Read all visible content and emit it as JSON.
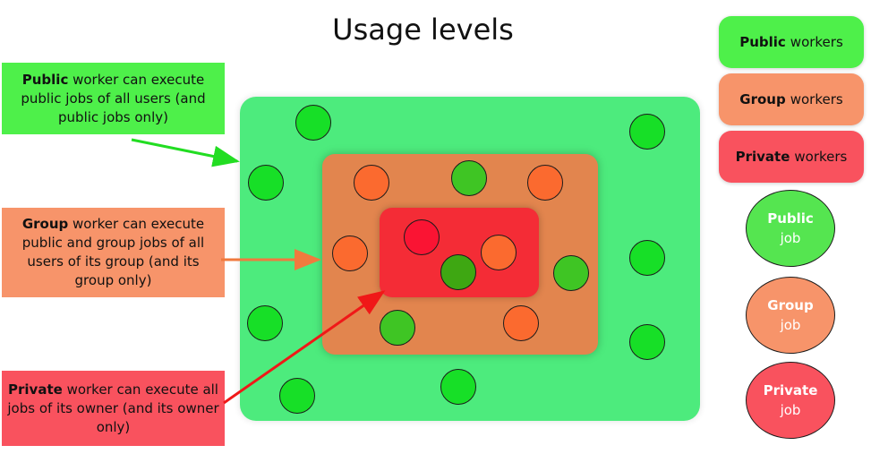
{
  "title": "Usage levels",
  "notes": {
    "public": {
      "bold": "Public",
      "rest": " worker can execute public jobs of all users (and public jobs only)"
    },
    "group": {
      "bold": "Group",
      "rest": " worker can execute public and group jobs of all users of its group (and its group only)"
    },
    "private": {
      "bold": "Private",
      "rest": " worker can execute all jobs of its owner (and its owner only)"
    }
  },
  "legend": {
    "public_workers": {
      "bold": "Public",
      "rest": "workers"
    },
    "group_workers": {
      "bold": "Group",
      "rest": "workers"
    },
    "private_workers": {
      "bold": "Private",
      "rest": "workers"
    },
    "public_job": {
      "bold": "Public",
      "rest": "job"
    },
    "group_job": {
      "bold": "Group",
      "rest": "job"
    },
    "private_job": {
      "bold": "Private",
      "rest": "job"
    }
  },
  "colors": {
    "public": "#4ef04a",
    "group": "#f7946a",
    "private": "#f9525e",
    "arrow_public": "#22dd22",
    "arrow_group": "#f07a3e",
    "arrow_private": "#f01818"
  }
}
